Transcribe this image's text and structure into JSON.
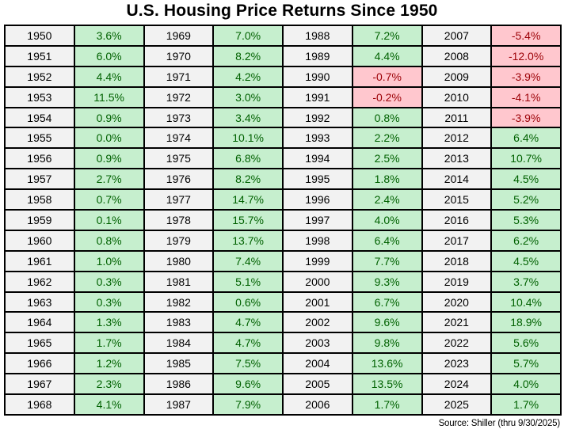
{
  "title": "U.S. Housing Price Returns Since 1950",
  "source_note": "Source: Shiller (thru 9/30/2025)",
  "colors": {
    "positive_fill": "#c6efce",
    "positive_text": "#006100",
    "negative_fill": "#ffc7ce",
    "negative_text": "#9c0006",
    "year_fill": "#f2f2f2",
    "border": "#000000",
    "background": "#ffffff"
  },
  "chart_data": {
    "type": "table",
    "title": "U.S. Housing Price Returns Since 1950",
    "source": "Source: Shiller (thru 9/30/2025)",
    "layout": {
      "rows": 19,
      "year_value_pairs": 4,
      "order": "column-major"
    },
    "x": [
      1950,
      1951,
      1952,
      1953,
      1954,
      1955,
      1956,
      1957,
      1958,
      1959,
      1960,
      1961,
      1962,
      1963,
      1964,
      1965,
      1966,
      1967,
      1968,
      1969,
      1970,
      1971,
      1972,
      1973,
      1974,
      1975,
      1976,
      1977,
      1978,
      1979,
      1980,
      1981,
      1982,
      1983,
      1984,
      1985,
      1986,
      1987,
      1988,
      1989,
      1990,
      1991,
      1992,
      1993,
      1994,
      1995,
      1996,
      1997,
      1998,
      1999,
      2000,
      2001,
      2002,
      2003,
      2004,
      2005,
      2006,
      2007,
      2008,
      2009,
      2010,
      2011,
      2012,
      2013,
      2014,
      2015,
      2016,
      2017,
      2018,
      2019,
      2020,
      2021,
      2022,
      2023,
      2024,
      2025
    ],
    "values_pct": [
      3.6,
      6.0,
      4.4,
      11.5,
      0.9,
      0.0,
      0.9,
      2.7,
      0.7,
      0.1,
      0.8,
      1.0,
      0.3,
      0.3,
      1.3,
      1.7,
      1.2,
      2.3,
      4.1,
      7.0,
      8.2,
      4.2,
      3.0,
      3.4,
      10.1,
      6.8,
      8.2,
      14.7,
      15.7,
      13.7,
      7.4,
      5.1,
      0.6,
      4.7,
      4.7,
      7.5,
      9.6,
      7.9,
      7.2,
      4.4,
      -0.7,
      -0.2,
      0.8,
      2.2,
      2.5,
      1.8,
      2.4,
      4.0,
      6.4,
      7.7,
      9.3,
      6.7,
      9.6,
      9.8,
      13.6,
      13.5,
      1.7,
      -5.4,
      -12.0,
      -3.9,
      -4.1,
      -3.9,
      6.4,
      10.7,
      4.5,
      5.2,
      5.3,
      6.2,
      4.5,
      3.7,
      10.4,
      18.9,
      5.6,
      5.7,
      4.0,
      1.7
    ],
    "labels_pct": [
      "3.6%",
      "6.0%",
      "4.4%",
      "11.5%",
      "0.9%",
      "0.0%",
      "0.9%",
      "2.7%",
      "0.7%",
      "0.1%",
      "0.8%",
      "1.0%",
      "0.3%",
      "0.3%",
      "1.3%",
      "1.7%",
      "1.2%",
      "2.3%",
      "4.1%",
      "7.0%",
      "8.2%",
      "4.2%",
      "3.0%",
      "3.4%",
      "10.1%",
      "6.8%",
      "8.2%",
      "14.7%",
      "15.7%",
      "13.7%",
      "7.4%",
      "5.1%",
      "0.6%",
      "4.7%",
      "4.7%",
      "7.5%",
      "9.6%",
      "7.9%",
      "7.2%",
      "4.4%",
      "-0.7%",
      "-0.2%",
      "0.8%",
      "2.2%",
      "2.5%",
      "1.8%",
      "2.4%",
      "4.0%",
      "6.4%",
      "7.7%",
      "9.3%",
      "6.7%",
      "9.6%",
      "9.8%",
      "13.6%",
      "13.5%",
      "1.7%",
      "-5.4%",
      "-12.0%",
      "-3.9%",
      "-4.1%",
      "-3.9%",
      "6.4%",
      "10.7%",
      "4.5%",
      "5.2%",
      "5.3%",
      "6.2%",
      "4.5%",
      "3.7%",
      "10.4%",
      "18.9%",
      "5.6%",
      "5.7%",
      "4.0%",
      "1.7%"
    ]
  }
}
